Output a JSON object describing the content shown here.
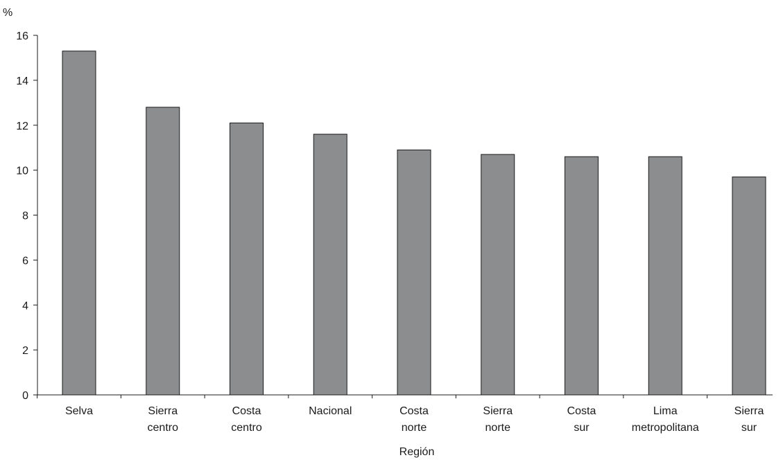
{
  "chart_data": {
    "type": "bar",
    "title": "",
    "ylabel": "%",
    "xlabel": "Región",
    "ylim": [
      0,
      16
    ],
    "yticks": [
      0,
      2,
      4,
      6,
      8,
      10,
      12,
      14,
      16
    ],
    "grid": false,
    "legend": "none",
    "bar_color": "#8c8d8f",
    "categories": [
      [
        "Selva"
      ],
      [
        "Sierra",
        "centro"
      ],
      [
        "Costa",
        "centro"
      ],
      [
        "Nacional"
      ],
      [
        "Costa",
        "norte"
      ],
      [
        "Sierra",
        "norte"
      ],
      [
        "Costa",
        "sur"
      ],
      [
        "Lima",
        "metropolitana"
      ],
      [
        "Sierra",
        "sur"
      ]
    ],
    "values": [
      15.3,
      12.8,
      12.1,
      11.6,
      10.9,
      10.7,
      10.6,
      10.6,
      9.7
    ]
  }
}
